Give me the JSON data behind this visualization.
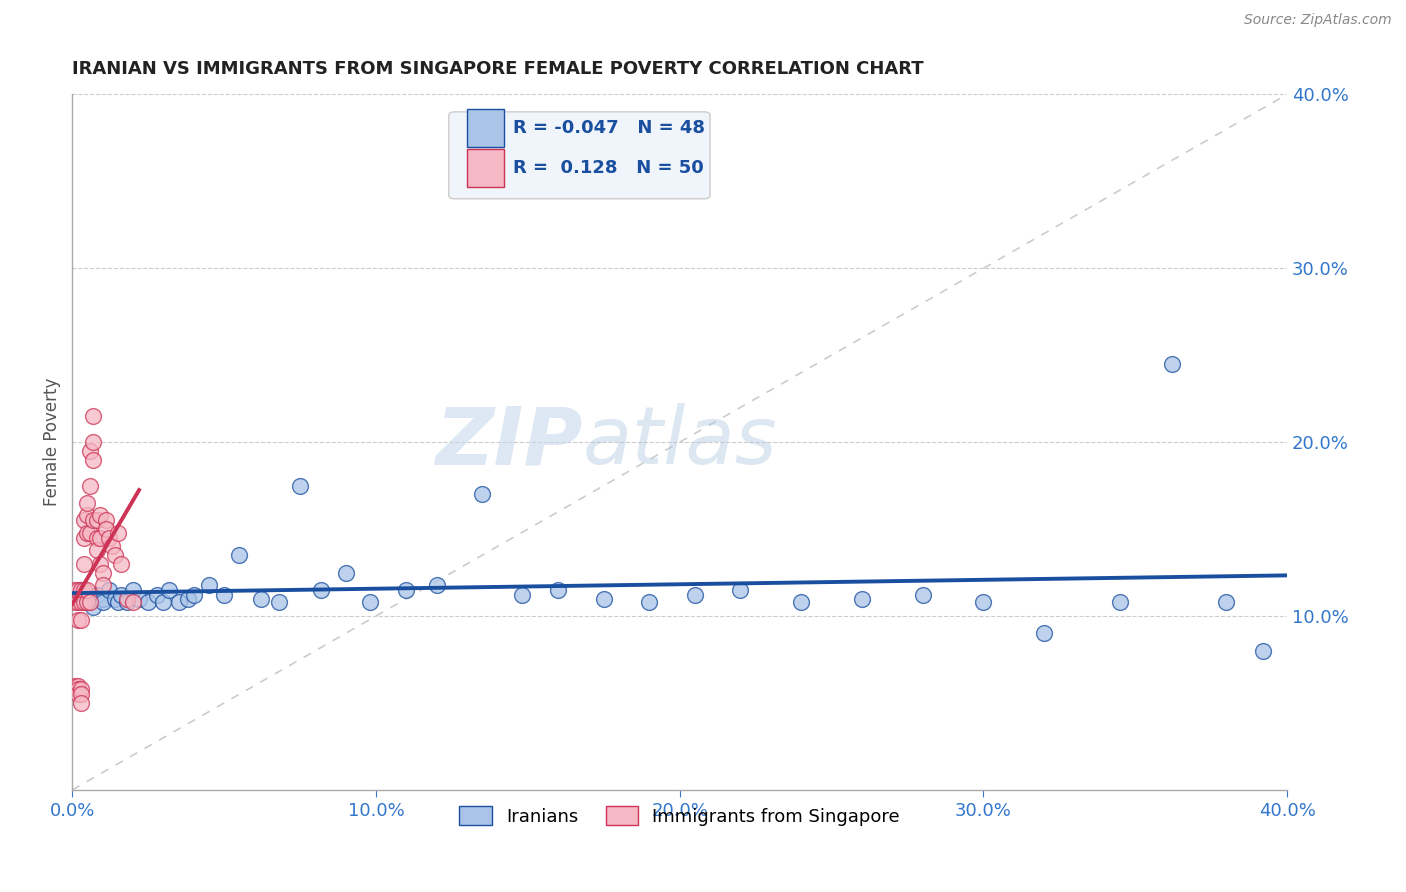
{
  "title": "IRANIAN VS IMMIGRANTS FROM SINGAPORE FEMALE POVERTY CORRELATION CHART",
  "source_text": "Source: ZipAtlas.com",
  "ylabel": "Female Poverty",
  "xmin": 0.0,
  "xmax": 0.4,
  "ymin": 0.0,
  "ymax": 0.4,
  "blue_R": -0.047,
  "blue_N": 48,
  "pink_R": 0.128,
  "pink_N": 50,
  "blue_color": "#aac4e8",
  "pink_color": "#f5b8c4",
  "blue_line_color": "#1a4fa0",
  "pink_line_color": "#cc3355",
  "title_color": "#222222",
  "axis_label_color": "#3377cc",
  "grid_color": "#cccccc",
  "diag_color": "#cccccc",
  "background_color": "#ffffff",
  "iranians_label": "Iranians",
  "singapore_label": "Immigrants from Singapore",
  "blue_x": [
    0.003,
    0.005,
    0.006,
    0.007,
    0.008,
    0.01,
    0.01,
    0.012,
    0.014,
    0.015,
    0.016,
    0.018,
    0.02,
    0.022,
    0.025,
    0.028,
    0.03,
    0.032,
    0.035,
    0.038,
    0.04,
    0.045,
    0.05,
    0.055,
    0.062,
    0.068,
    0.075,
    0.082,
    0.09,
    0.098,
    0.11,
    0.12,
    0.135,
    0.148,
    0.16,
    0.175,
    0.19,
    0.205,
    0.22,
    0.24,
    0.26,
    0.28,
    0.3,
    0.32,
    0.345,
    0.362,
    0.38,
    0.392
  ],
  "blue_y": [
    0.115,
    0.108,
    0.11,
    0.105,
    0.112,
    0.11,
    0.108,
    0.115,
    0.11,
    0.108,
    0.112,
    0.108,
    0.115,
    0.11,
    0.108,
    0.112,
    0.108,
    0.115,
    0.108,
    0.11,
    0.112,
    0.118,
    0.112,
    0.135,
    0.11,
    0.108,
    0.175,
    0.115,
    0.125,
    0.108,
    0.115,
    0.118,
    0.17,
    0.112,
    0.115,
    0.11,
    0.108,
    0.112,
    0.115,
    0.108,
    0.11,
    0.112,
    0.108,
    0.09,
    0.108,
    0.245,
    0.108,
    0.08
  ],
  "pink_x": [
    0.001,
    0.001,
    0.001,
    0.002,
    0.002,
    0.002,
    0.002,
    0.002,
    0.002,
    0.003,
    0.003,
    0.003,
    0.003,
    0.003,
    0.003,
    0.004,
    0.004,
    0.004,
    0.004,
    0.004,
    0.005,
    0.005,
    0.005,
    0.005,
    0.005,
    0.006,
    0.006,
    0.006,
    0.006,
    0.007,
    0.007,
    0.007,
    0.007,
    0.008,
    0.008,
    0.008,
    0.009,
    0.009,
    0.009,
    0.01,
    0.01,
    0.011,
    0.011,
    0.012,
    0.013,
    0.014,
    0.015,
    0.016,
    0.018,
    0.02
  ],
  "pink_y": [
    0.108,
    0.115,
    0.06,
    0.108,
    0.098,
    0.115,
    0.06,
    0.058,
    0.055,
    0.108,
    0.098,
    0.115,
    0.058,
    0.055,
    0.05,
    0.108,
    0.115,
    0.155,
    0.145,
    0.13,
    0.108,
    0.115,
    0.148,
    0.158,
    0.165,
    0.108,
    0.148,
    0.195,
    0.175,
    0.2,
    0.215,
    0.19,
    0.155,
    0.155,
    0.145,
    0.138,
    0.158,
    0.145,
    0.13,
    0.125,
    0.118,
    0.155,
    0.15,
    0.145,
    0.14,
    0.135,
    0.148,
    0.13,
    0.11,
    0.108
  ]
}
